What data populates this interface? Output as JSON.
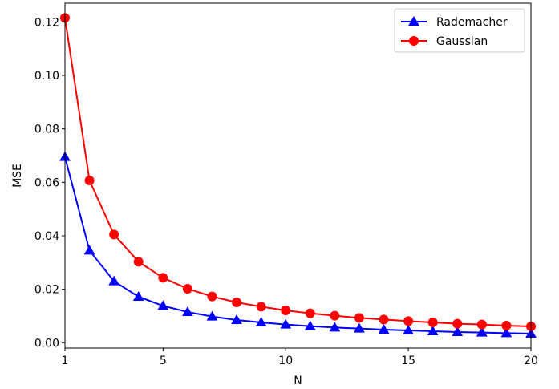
{
  "chart_data": {
    "type": "line",
    "title": "",
    "xlabel": "N",
    "ylabel": "MSE",
    "xlim": [
      1,
      20
    ],
    "ylim": [
      -0.002,
      0.127
    ],
    "x_ticks": [
      1,
      5,
      10,
      15,
      20
    ],
    "x_tick_labels": [
      "1",
      "5",
      "10",
      "15",
      "20"
    ],
    "y_ticks": [
      0.0,
      0.02,
      0.04,
      0.06,
      0.08,
      0.1,
      0.12
    ],
    "y_tick_labels": [
      "0.00",
      "0.02",
      "0.04",
      "0.06",
      "0.08",
      "0.10",
      "0.12"
    ],
    "grid": false,
    "legend_position": "top-right",
    "x": [
      1,
      2,
      3,
      4,
      5,
      6,
      7,
      8,
      9,
      10,
      11,
      12,
      13,
      14,
      15,
      16,
      17,
      18,
      19,
      20
    ],
    "series": [
      {
        "name": "Rademacher",
        "color": "#0000ff",
        "marker": "triangle-up",
        "values": [
          0.0695,
          0.0345,
          0.023,
          0.0172,
          0.0138,
          0.0115,
          0.0098,
          0.0085,
          0.0076,
          0.0068,
          0.0062,
          0.0057,
          0.0053,
          0.0049,
          0.0046,
          0.0043,
          0.004,
          0.0038,
          0.0036,
          0.0034
        ]
      },
      {
        "name": "Gaussian",
        "color": "#ff0000",
        "marker": "circle",
        "values": [
          0.1215,
          0.0607,
          0.0405,
          0.0303,
          0.0243,
          0.0202,
          0.0173,
          0.0151,
          0.0135,
          0.0121,
          0.011,
          0.0101,
          0.0093,
          0.0087,
          0.0081,
          0.0076,
          0.0071,
          0.0068,
          0.0064,
          0.0061
        ]
      }
    ]
  }
}
